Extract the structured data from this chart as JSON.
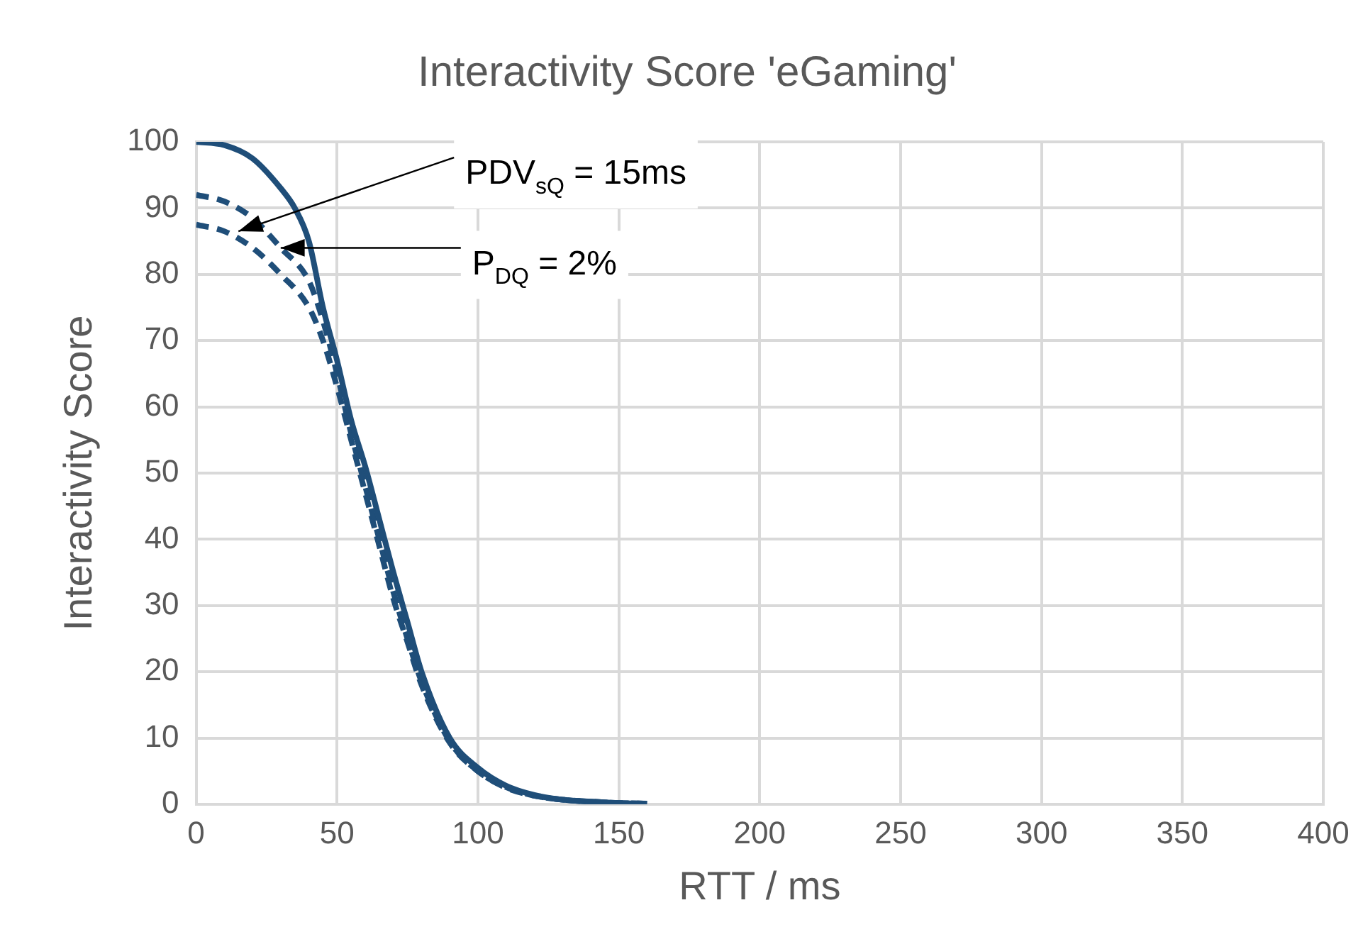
{
  "chart_data": {
    "type": "line",
    "title": "Interactivity Score 'eGaming'",
    "xlabel": "RTT / ms",
    "ylabel": "Interactivity Score",
    "xlim": [
      0,
      400
    ],
    "xticks": [
      0,
      50,
      100,
      150,
      200,
      250,
      300,
      350,
      400
    ],
    "ylim": [
      0,
      100
    ],
    "yticks": [
      0,
      10,
      20,
      30,
      40,
      50,
      60,
      70,
      80,
      90,
      100
    ],
    "grid": true,
    "legend": false,
    "marker": "none",
    "series": [
      {
        "color": "#1f4e79",
        "line_style": "solid",
        "x": [
          0,
          10,
          20,
          30,
          35,
          40,
          45,
          50,
          55,
          60,
          65,
          70,
          75,
          80,
          90,
          100,
          110,
          120,
          130,
          140,
          150,
          160
        ],
        "values": [
          100,
          99.5,
          97.5,
          93,
          90,
          85,
          75,
          67,
          58,
          51,
          43,
          35,
          27.5,
          20,
          10,
          5.5,
          2.8,
          1.4,
          0.7,
          0.4,
          0.2,
          0.1
        ]
      },
      {
        "color": "#1f4e79",
        "line_style": "dashed",
        "x": [
          0,
          10,
          20,
          30,
          40,
          45,
          50,
          55,
          60,
          65,
          70,
          75,
          80,
          90,
          100,
          110,
          120,
          130,
          140,
          150,
          160
        ],
        "values": [
          92,
          91,
          88.5,
          84,
          79,
          73,
          65,
          56,
          48,
          40,
          32,
          25,
          18.5,
          9.5,
          5,
          2.6,
          1.3,
          0.7,
          0.4,
          0.2,
          0.1
        ]
      },
      {
        "color": "#1f4e79",
        "line_style": "dashed",
        "x": [
          0,
          10,
          20,
          30,
          40,
          45,
          50,
          55,
          60,
          65,
          70,
          75,
          80,
          90,
          100,
          110,
          120,
          130,
          140,
          150,
          160
        ],
        "values": [
          87.5,
          86.5,
          84,
          80,
          75,
          70,
          63,
          55,
          47,
          39,
          31,
          24.5,
          18,
          9.3,
          5,
          2.5,
          1.3,
          0.7,
          0.4,
          0.2,
          0.1
        ]
      }
    ],
    "annotations": [
      {
        "text": "PDV$_{sQ}$ = 15ms",
        "x": 15,
        "y": 86.5
      },
      {
        "text": "P$_{DQ}$ = 2%",
        "x": 30,
        "y": 84
      }
    ]
  }
}
